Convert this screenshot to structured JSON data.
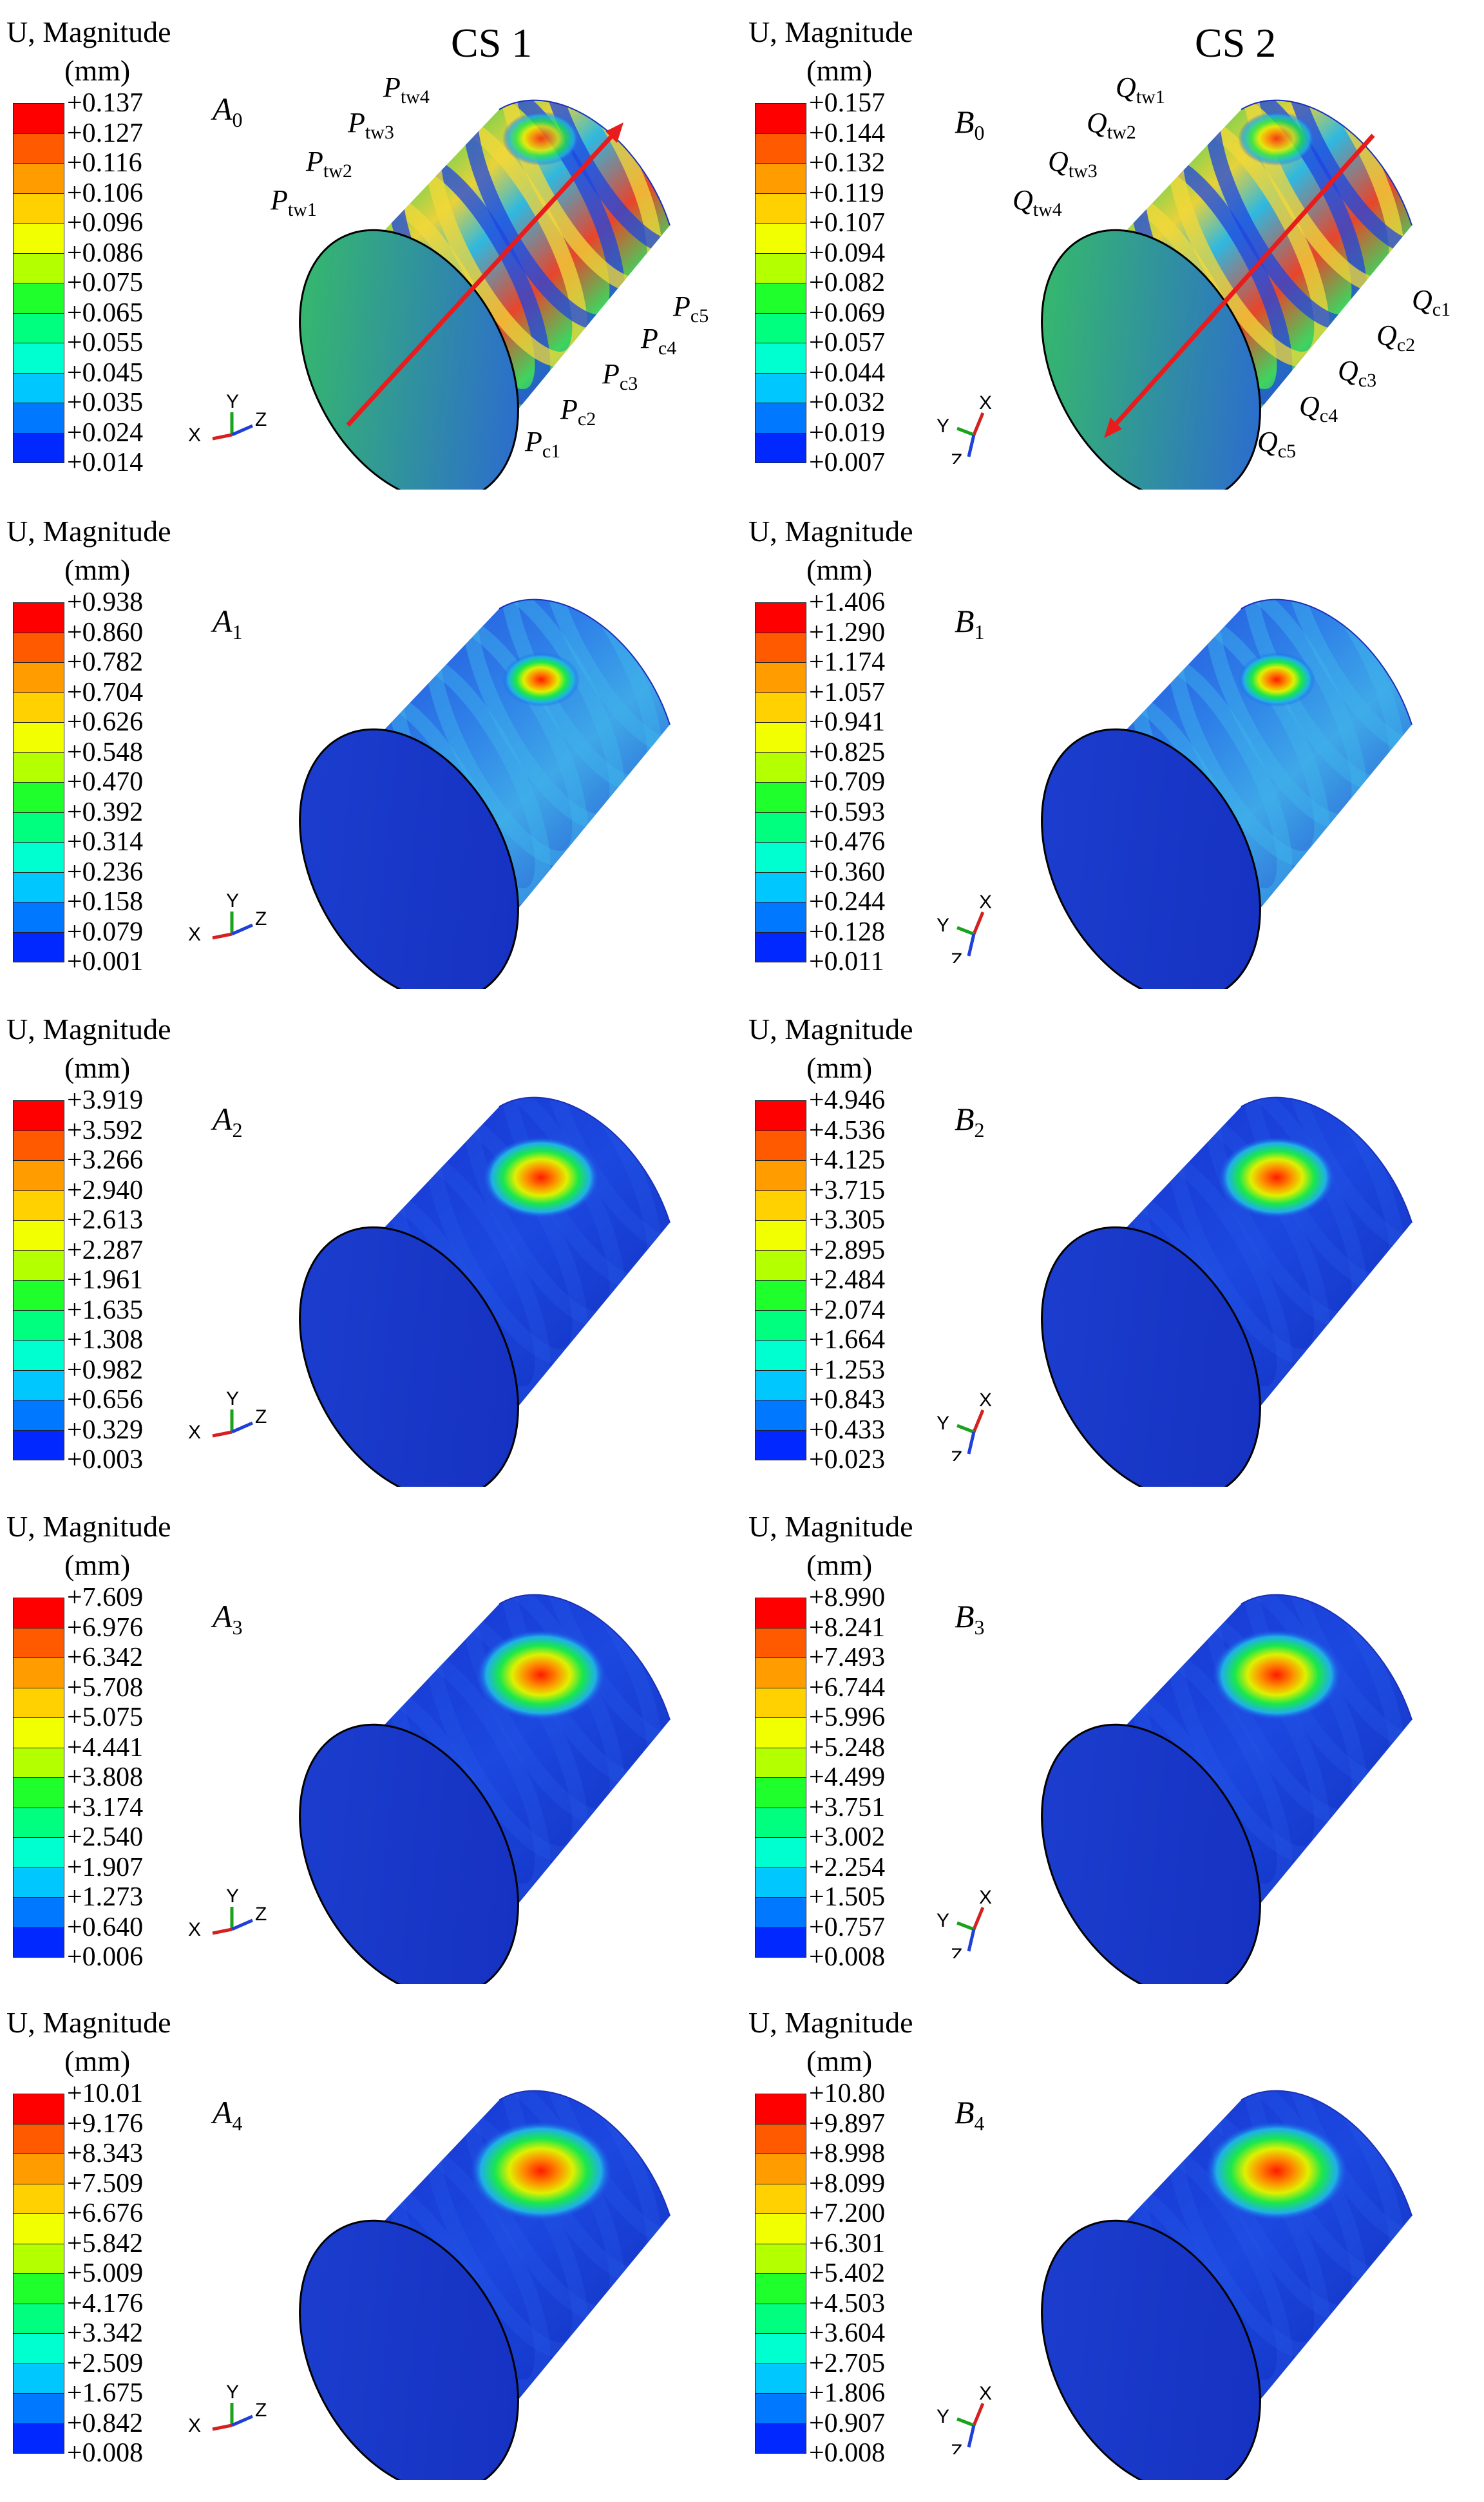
{
  "columns": [
    {
      "title": "CS 1"
    },
    {
      "title": "CS 2"
    }
  ],
  "legend_title": "U, Magnitude",
  "legend_unit": "(mm)",
  "colors": [
    "#ff0000",
    "#ff5a00",
    "#ff9c00",
    "#ffd100",
    "#f2ff00",
    "#b4ff00",
    "#6aff00",
    "#1eff2b",
    "#00ff7f",
    "#00ffd0",
    "#00c8ff",
    "#0078ff",
    "#0028ff"
  ],
  "axis_labels": {
    "x": "X",
    "y": "Y",
    "z": "Z"
  },
  "panels": [
    {
      "id": "A0",
      "letter": "A",
      "sub": "0",
      "ticks": [
        "+0.137",
        "+0.127",
        "+0.116",
        "+0.106",
        "+0.096",
        "+0.086",
        "+0.075",
        "+0.065",
        "+0.055",
        "+0.045",
        "+0.035",
        "+0.024",
        "+0.014"
      ]
    },
    {
      "id": "B0",
      "letter": "B",
      "sub": "0",
      "ticks": [
        "+0.157",
        "+0.144",
        "+0.132",
        "+0.119",
        "+0.107",
        "+0.094",
        "+0.082",
        "+0.069",
        "+0.057",
        "+0.044",
        "+0.032",
        "+0.019",
        "+0.007"
      ]
    },
    {
      "id": "A1",
      "letter": "A",
      "sub": "1",
      "ticks": [
        "+0.938",
        "+0.860",
        "+0.782",
        "+0.704",
        "+0.626",
        "+0.548",
        "+0.470",
        "+0.392",
        "+0.314",
        "+0.236",
        "+0.158",
        "+0.079",
        "+0.001"
      ]
    },
    {
      "id": "B1",
      "letter": "B",
      "sub": "1",
      "ticks": [
        "+1.406",
        "+1.290",
        "+1.174",
        "+1.057",
        "+0.941",
        "+0.825",
        "+0.709",
        "+0.593",
        "+0.476",
        "+0.360",
        "+0.244",
        "+0.128",
        "+0.011"
      ]
    },
    {
      "id": "A2",
      "letter": "A",
      "sub": "2",
      "ticks": [
        "+3.919",
        "+3.592",
        "+3.266",
        "+2.940",
        "+2.613",
        "+2.287",
        "+1.961",
        "+1.635",
        "+1.308",
        "+0.982",
        "+0.656",
        "+0.329",
        "+0.003"
      ]
    },
    {
      "id": "B2",
      "letter": "B",
      "sub": "2",
      "ticks": [
        "+4.946",
        "+4.536",
        "+4.125",
        "+3.715",
        "+3.305",
        "+2.895",
        "+2.484",
        "+2.074",
        "+1.664",
        "+1.253",
        "+0.843",
        "+0.433",
        "+0.023"
      ]
    },
    {
      "id": "A3",
      "letter": "A",
      "sub": "3",
      "ticks": [
        "+7.609",
        "+6.976",
        "+6.342",
        "+5.708",
        "+5.075",
        "+4.441",
        "+3.808",
        "+3.174",
        "+2.540",
        "+1.907",
        "+1.273",
        "+0.640",
        "+0.006"
      ]
    },
    {
      "id": "B3",
      "letter": "B",
      "sub": "3",
      "ticks": [
        "+8.990",
        "+8.241",
        "+7.493",
        "+6.744",
        "+5.996",
        "+5.248",
        "+4.499",
        "+3.751",
        "+3.002",
        "+2.254",
        "+1.505",
        "+0.757",
        "+0.008"
      ]
    },
    {
      "id": "A4",
      "letter": "A",
      "sub": "4",
      "ticks": [
        "+10.01",
        "+9.176",
        "+8.343",
        "+7.509",
        "+6.676",
        "+5.842",
        "+5.009",
        "+4.176",
        "+3.342",
        "+2.509",
        "+1.675",
        "+0.842",
        "+0.008"
      ]
    },
    {
      "id": "B4",
      "letter": "B",
      "sub": "4",
      "ticks": [
        "+10.80",
        "+9.897",
        "+8.998",
        "+8.099",
        "+7.200",
        "+6.301",
        "+5.402",
        "+4.503",
        "+3.604",
        "+2.705",
        "+1.806",
        "+0.907",
        "+0.008"
      ]
    }
  ],
  "point_labels_cs1": {
    "tw": [
      {
        "base": "P",
        "sub": "tw4"
      },
      {
        "base": "P",
        "sub": "tw3"
      },
      {
        "base": "P",
        "sub": "tw2"
      },
      {
        "base": "P",
        "sub": "tw1"
      }
    ],
    "c": [
      {
        "base": "P",
        "sub": "c5"
      },
      {
        "base": "P",
        "sub": "c4"
      },
      {
        "base": "P",
        "sub": "c3"
      },
      {
        "base": "P",
        "sub": "c2"
      },
      {
        "base": "P",
        "sub": "c1"
      }
    ]
  },
  "point_labels_cs2": {
    "tw": [
      {
        "base": "Q",
        "sub": "tw1"
      },
      {
        "base": "Q",
        "sub": "tw2"
      },
      {
        "base": "Q",
        "sub": "tw3"
      },
      {
        "base": "Q",
        "sub": "tw4"
      }
    ],
    "c": [
      {
        "base": "Q",
        "sub": "c1"
      },
      {
        "base": "Q",
        "sub": "c2"
      },
      {
        "base": "Q",
        "sub": "c3"
      },
      {
        "base": "Q",
        "sub": "c4"
      },
      {
        "base": "Q",
        "sub": "c5"
      }
    ]
  }
}
